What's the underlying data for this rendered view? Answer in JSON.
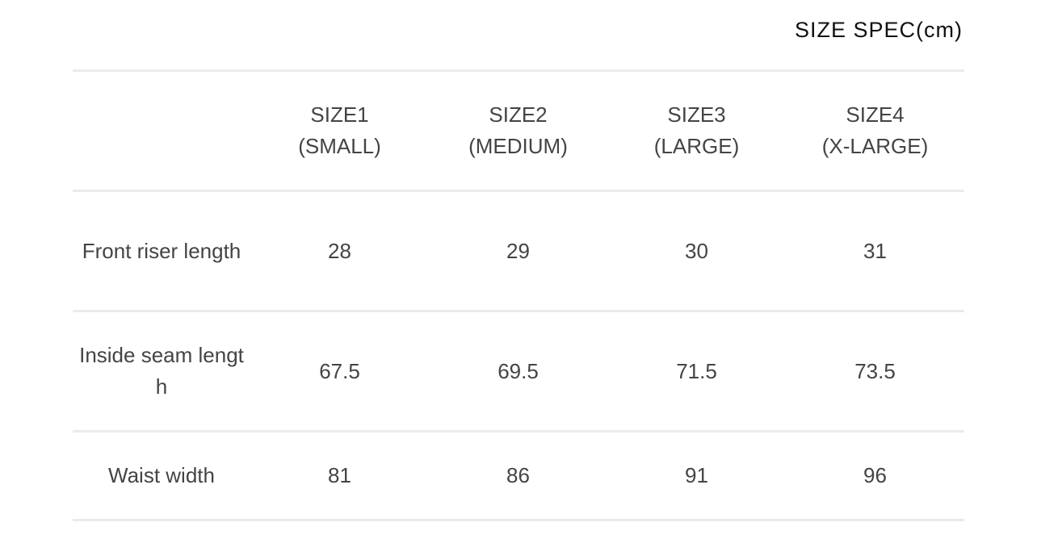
{
  "title": "SIZE SPEC(cm)",
  "columns": [
    {
      "line1": "SIZE1",
      "line2": "(SMALL)"
    },
    {
      "line1": "SIZE2",
      "line2": "(MEDIUM)"
    },
    {
      "line1": "SIZE3",
      "line2": "(LARGE)"
    },
    {
      "line1": "SIZE4",
      "line2": "(X-LARGE)"
    }
  ],
  "rows": [
    {
      "label": "Front riser length",
      "values": [
        "28",
        "29",
        "30",
        "31"
      ]
    },
    {
      "label": "Inside seam length",
      "values": [
        "67.5",
        "69.5",
        "71.5",
        "73.5"
      ]
    },
    {
      "label": "Waist width",
      "values": [
        "81",
        "86",
        "91",
        "96"
      ]
    }
  ]
}
